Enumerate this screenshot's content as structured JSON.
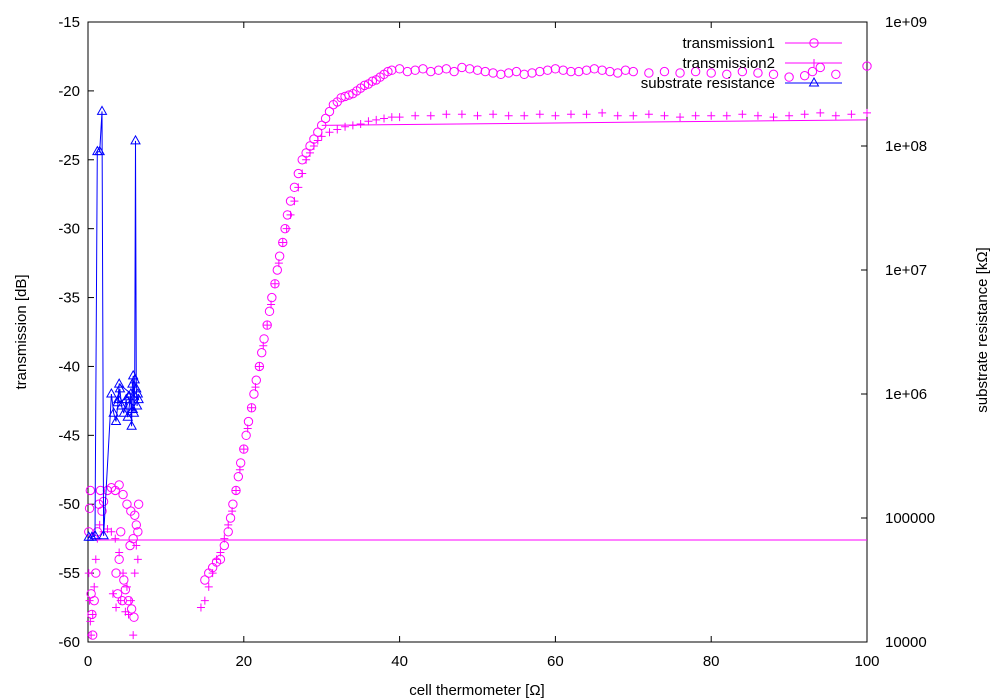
{
  "chart_data": {
    "type": "scatter",
    "title": "",
    "xlabel": "cell thermometer [Ω]",
    "ylabel": "transmission [dB]",
    "y2label": "substrate resistance [kΩ]",
    "xlim": [
      0,
      100
    ],
    "ylim": [
      -60,
      -15
    ],
    "y2lim": [
      10000,
      1000000000
    ],
    "y2scale": "log",
    "grid": false,
    "legend_position": "top-right",
    "x_ticks": [
      "0",
      "20",
      "40",
      "60",
      "80",
      "100"
    ],
    "y_ticks": [
      "-15",
      "-20",
      "-25",
      "-30",
      "-35",
      "-40",
      "-45",
      "-50",
      "-55",
      "-60"
    ],
    "y2_ticks": [
      "1e+09",
      "1e+08",
      "1e+07",
      "1e+06",
      "100000",
      "10000"
    ],
    "colors": {
      "transmission1": "#ff00ff",
      "transmission2": "#ff00ff",
      "substrate_resistance": "#0000ff"
    },
    "series": [
      {
        "name": "transmission1",
        "marker": "circle",
        "axis": "left",
        "points": [
          [
            0.1,
            -52
          ],
          [
            0.2,
            -50.3
          ],
          [
            0.3,
            -49
          ],
          [
            0.4,
            -56.5
          ],
          [
            0.5,
            -58
          ],
          [
            0.6,
            -59.5
          ],
          [
            0.8,
            -57
          ],
          [
            1.0,
            -55
          ],
          [
            1.2,
            -52
          ],
          [
            1.4,
            -50
          ],
          [
            1.6,
            -49
          ],
          [
            1.8,
            -50.5
          ],
          [
            2.0,
            -49.8
          ],
          [
            2.5,
            -49
          ],
          [
            3.0,
            -48.8
          ],
          [
            3.5,
            -49
          ],
          [
            4.0,
            -48.6
          ],
          [
            4.5,
            -49.3
          ],
          [
            5.0,
            -50
          ],
          [
            5.5,
            -50.5
          ],
          [
            6.0,
            -50.8
          ],
          [
            6.2,
            -51.5
          ],
          [
            6.4,
            -52
          ],
          [
            6.5,
            -50
          ],
          [
            4.2,
            -52
          ],
          [
            4.6,
            -55.5
          ],
          [
            4.8,
            -56.2
          ],
          [
            5.2,
            -57
          ],
          [
            5.6,
            -57.6
          ],
          [
            5.9,
            -58.2
          ],
          [
            4.0,
            -54
          ],
          [
            3.6,
            -55
          ],
          [
            3.8,
            -56.5
          ],
          [
            4.4,
            -57
          ],
          [
            5.4,
            -53
          ],
          [
            5.8,
            -52.5
          ],
          [
            15,
            -55.5
          ],
          [
            15.5,
            -55
          ],
          [
            16,
            -54.6
          ],
          [
            16.5,
            -54.2
          ],
          [
            17,
            -54
          ],
          [
            17.5,
            -53
          ],
          [
            18,
            -52
          ],
          [
            18.3,
            -51
          ],
          [
            18.6,
            -50
          ],
          [
            19,
            -49
          ],
          [
            19.3,
            -48
          ],
          [
            19.6,
            -47
          ],
          [
            20,
            -46
          ],
          [
            20.3,
            -45
          ],
          [
            20.6,
            -44
          ],
          [
            21,
            -43
          ],
          [
            21.3,
            -42
          ],
          [
            21.6,
            -41
          ],
          [
            22,
            -40
          ],
          [
            22.3,
            -39
          ],
          [
            22.6,
            -38
          ],
          [
            23,
            -37
          ],
          [
            23.3,
            -36
          ],
          [
            23.6,
            -35
          ],
          [
            24,
            -34
          ],
          [
            24.3,
            -33
          ],
          [
            24.6,
            -32
          ],
          [
            25,
            -31
          ],
          [
            25.3,
            -30
          ],
          [
            25.6,
            -29
          ],
          [
            26,
            -28
          ],
          [
            26.5,
            -27
          ],
          [
            27,
            -26
          ],
          [
            27.5,
            -25
          ],
          [
            28,
            -24.5
          ],
          [
            28.5,
            -24
          ],
          [
            29,
            -23.5
          ],
          [
            29.5,
            -23
          ],
          [
            30,
            -22.5
          ],
          [
            30.5,
            -22
          ],
          [
            31,
            -21.5
          ],
          [
            31.5,
            -21
          ],
          [
            32,
            -20.8
          ],
          [
            32.5,
            -20.5
          ],
          [
            33,
            -20.4
          ],
          [
            33.5,
            -20.3
          ],
          [
            34,
            -20.2
          ],
          [
            34.5,
            -20
          ],
          [
            35,
            -19.8
          ],
          [
            35.5,
            -19.6
          ],
          [
            36,
            -19.5
          ],
          [
            36.5,
            -19.3
          ],
          [
            37,
            -19.2
          ],
          [
            37.5,
            -19
          ],
          [
            38,
            -18.8
          ],
          [
            38.5,
            -18.6
          ],
          [
            39,
            -18.5
          ],
          [
            40,
            -18.4
          ],
          [
            41,
            -18.6
          ],
          [
            42,
            -18.5
          ],
          [
            43,
            -18.4
          ],
          [
            44,
            -18.6
          ],
          [
            45,
            -18.5
          ],
          [
            46,
            -18.4
          ],
          [
            47,
            -18.6
          ],
          [
            48,
            -18.3
          ],
          [
            49,
            -18.4
          ],
          [
            50,
            -18.5
          ],
          [
            51,
            -18.6
          ],
          [
            52,
            -18.7
          ],
          [
            53,
            -18.8
          ],
          [
            54,
            -18.7
          ],
          [
            55,
            -18.6
          ],
          [
            56,
            -18.8
          ],
          [
            57,
            -18.7
          ],
          [
            58,
            -18.6
          ],
          [
            59,
            -18.5
          ],
          [
            60,
            -18.4
          ],
          [
            61,
            -18.5
          ],
          [
            62,
            -18.6
          ],
          [
            63,
            -18.6
          ],
          [
            64,
            -18.5
          ],
          [
            65,
            -18.4
          ],
          [
            66,
            -18.5
          ],
          [
            67,
            -18.6
          ],
          [
            68,
            -18.7
          ],
          [
            69,
            -18.5
          ],
          [
            70,
            -18.6
          ],
          [
            72,
            -18.7
          ],
          [
            74,
            -18.6
          ],
          [
            76,
            -18.7
          ],
          [
            78,
            -18.6
          ],
          [
            80,
            -18.7
          ],
          [
            82,
            -18.8
          ],
          [
            84,
            -18.6
          ],
          [
            86,
            -18.7
          ],
          [
            88,
            -18.8
          ],
          [
            90,
            -19
          ],
          [
            92,
            -18.9
          ],
          [
            93,
            -18.6
          ],
          [
            94,
            -18.3
          ],
          [
            96,
            -18.8
          ],
          [
            100,
            -18.2
          ]
        ],
        "connector": [
          [
            0.1,
            -52.6
          ],
          [
            100,
            -52.6
          ]
        ]
      },
      {
        "name": "transmission2",
        "marker": "plus",
        "axis": "left",
        "points": [
          [
            0.1,
            -55
          ],
          [
            0.2,
            -57
          ],
          [
            0.3,
            -58.5
          ],
          [
            0.4,
            -59.5
          ],
          [
            0.6,
            -58
          ],
          [
            0.8,
            -56
          ],
          [
            1.0,
            -54
          ],
          [
            1.2,
            -52.5
          ],
          [
            1.5,
            -51.5
          ],
          [
            2.0,
            -52
          ],
          [
            2.5,
            -51.8
          ],
          [
            3.0,
            -52
          ],
          [
            3.5,
            -52.5
          ],
          [
            4.0,
            -53.5
          ],
          [
            4.5,
            -55
          ],
          [
            5.0,
            -56
          ],
          [
            5.5,
            -57
          ],
          [
            5.8,
            -59.5
          ],
          [
            6.0,
            -55
          ],
          [
            6.2,
            -53
          ],
          [
            3.2,
            -56.5
          ],
          [
            3.6,
            -57.5
          ],
          [
            4.2,
            -57
          ],
          [
            4.8,
            -57.8
          ],
          [
            5.2,
            -58
          ],
          [
            6.4,
            -54
          ],
          [
            14.5,
            -57.5
          ],
          [
            15,
            -57
          ],
          [
            15.5,
            -56
          ],
          [
            16,
            -55
          ],
          [
            16.5,
            -54
          ],
          [
            17,
            -53.5
          ],
          [
            17.5,
            -52.5
          ],
          [
            18,
            -51.5
          ],
          [
            18.5,
            -50.5
          ],
          [
            19,
            -49
          ],
          [
            19.5,
            -47.5
          ],
          [
            20,
            -46
          ],
          [
            20.5,
            -44.5
          ],
          [
            21,
            -43
          ],
          [
            21.5,
            -41.5
          ],
          [
            22,
            -40
          ],
          [
            22.5,
            -38.5
          ],
          [
            23,
            -37
          ],
          [
            23.5,
            -35.5
          ],
          [
            24,
            -34
          ],
          [
            24.5,
            -32.5
          ],
          [
            25,
            -31
          ],
          [
            25.5,
            -30
          ],
          [
            26,
            -29
          ],
          [
            26.5,
            -28
          ],
          [
            27,
            -27
          ],
          [
            27.5,
            -26
          ],
          [
            28,
            -25
          ],
          [
            28.5,
            -24.5
          ],
          [
            29,
            -24
          ],
          [
            29.5,
            -23.6
          ],
          [
            30,
            -23.3
          ],
          [
            31,
            -23
          ],
          [
            32,
            -22.8
          ],
          [
            33,
            -22.6
          ],
          [
            34,
            -22.5
          ],
          [
            35,
            -22.4
          ],
          [
            36,
            -22.2
          ],
          [
            37,
            -22.1
          ],
          [
            38,
            -22
          ],
          [
            39,
            -21.9
          ],
          [
            40,
            -21.9
          ],
          [
            42,
            -21.8
          ],
          [
            44,
            -21.8
          ],
          [
            46,
            -21.7
          ],
          [
            48,
            -21.7
          ],
          [
            50,
            -21.8
          ],
          [
            52,
            -21.7
          ],
          [
            54,
            -21.8
          ],
          [
            56,
            -21.8
          ],
          [
            58,
            -21.7
          ],
          [
            60,
            -21.8
          ],
          [
            62,
            -21.7
          ],
          [
            64,
            -21.7
          ],
          [
            66,
            -21.6
          ],
          [
            68,
            -21.8
          ],
          [
            70,
            -21.8
          ],
          [
            72,
            -21.7
          ],
          [
            74,
            -21.8
          ],
          [
            76,
            -21.9
          ],
          [
            78,
            -21.8
          ],
          [
            80,
            -21.8
          ],
          [
            82,
            -21.8
          ],
          [
            84,
            -21.7
          ],
          [
            86,
            -21.8
          ],
          [
            88,
            -21.9
          ],
          [
            90,
            -21.8
          ],
          [
            92,
            -21.7
          ],
          [
            94,
            -21.6
          ],
          [
            96,
            -21.8
          ],
          [
            98,
            -21.7
          ],
          [
            100,
            -21.6
          ]
        ],
        "connector": [
          [
            30,
            -22.5
          ],
          [
            100,
            -22.1
          ]
        ]
      },
      {
        "name": "substrate resistance",
        "marker": "triangle",
        "axis": "right",
        "points": [
          [
            0.1,
            70000
          ],
          [
            0.5,
            70000
          ],
          [
            0.9,
            72000
          ],
          [
            1.2,
            90000000
          ],
          [
            1.5,
            90000000
          ],
          [
            1.8,
            190000000
          ],
          [
            2.0,
            72000
          ],
          [
            3.0,
            1000000
          ],
          [
            3.3,
            700000
          ],
          [
            3.6,
            600000
          ],
          [
            3.9,
            900000
          ],
          [
            4.1,
            1100000
          ],
          [
            4.3,
            800000
          ],
          [
            4.6,
            700000
          ],
          [
            4.9,
            900000
          ],
          [
            5.1,
            650000
          ],
          [
            5.3,
            800000
          ],
          [
            5.5,
            1000000
          ],
          [
            5.6,
            550000
          ],
          [
            5.7,
            1200000
          ],
          [
            5.8,
            1400000
          ],
          [
            5.9,
            700000
          ],
          [
            6.0,
            1300000
          ],
          [
            6.1,
            110000000
          ],
          [
            6.2,
            1100000
          ],
          [
            6.3,
            800000
          ],
          [
            6.4,
            1000000
          ],
          [
            6.5,
            900000
          ],
          [
            4.0,
            1200000
          ],
          [
            3.8,
            850000
          ],
          [
            5.2,
            950000
          ],
          [
            5.75,
            750000
          ]
        ]
      }
    ]
  }
}
